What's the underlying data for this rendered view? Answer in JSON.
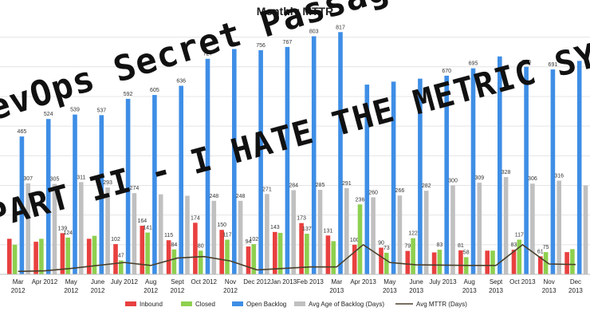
{
  "overlay": {
    "line1": "DevOps Secret Passageway Ahead",
    "line2": "PART II - I HATE THE METRIC SYSTEM"
  },
  "chart_data": {
    "type": "bar",
    "title": "Monthly MTTR",
    "categories": [
      "Mar 2012",
      "Apr 2012",
      "May 2012",
      "June 2012",
      "July 2012",
      "Aug 2012",
      "Sept 2012",
      "Oct 2012",
      "Nov 2012",
      "Dec 2012",
      "Jan 2013",
      "Feb 2013",
      "Mar 2013",
      "Apr 2013",
      "May 2013",
      "June 2013",
      "July 2013",
      "Aug 2013",
      "Sept 2013",
      "Oct 2013",
      "Nov 2013",
      "Dec 2013"
    ],
    "series": [
      {
        "name": "Inbound",
        "color": "#e8403f",
        "values": [
          120,
          110,
          139,
          120,
          102,
          164,
          115,
          174,
          150,
          94,
          143,
          173,
          131,
          100,
          90,
          79,
          74,
          81,
          80,
          83,
          61,
          75
        ]
      },
      {
        "name": "Closed",
        "color": "#8ed04f",
        "values": [
          100,
          120,
          124,
          130,
          47,
          141,
          84,
          80,
          117,
          102,
          140,
          137,
          112,
          236,
          73,
          122,
          83,
          58,
          80,
          117,
          75,
          85
        ]
      },
      {
        "name": "Open Backlog",
        "color": "#3e8ee6",
        "values": [
          465,
          524,
          539,
          537,
          592,
          605,
          636,
          727,
          760,
          756,
          767,
          803,
          817,
          640,
          650,
          660,
          670,
          695,
          735,
          700,
          691,
          720
        ]
      },
      {
        "name": "Avg Age of Backlog (Days)",
        "color": "#c0c0c0",
        "values": [
          307,
          305,
          311,
          293,
          274,
          270,
          265,
          248,
          248,
          271,
          284,
          285,
          291,
          260,
          266,
          282,
          300,
          309,
          328,
          306,
          316,
          300
        ]
      }
    ],
    "line": {
      "name": "Avg MTTR (Days)",
      "color": "#4a3f2a",
      "values": [
        10,
        12,
        20,
        30,
        40,
        30,
        55,
        60,
        45,
        15,
        20,
        25,
        25,
        100,
        40,
        32,
        31,
        30,
        30,
        100,
        35,
        33
      ]
    },
    "ylim": [
      0,
      850
    ],
    "legend_position": "bottom",
    "x_labels": [
      [
        "Mar",
        "2012"
      ],
      [
        "Apr 2012"
      ],
      [
        "May",
        "2012"
      ],
      [
        "June",
        "2012"
      ],
      [
        "July 2012"
      ],
      [
        "Aug",
        "2012"
      ],
      [
        "Sept",
        "2012"
      ],
      [
        "Oct 2012"
      ],
      [
        "Nov",
        "2012"
      ],
      [
        "Dec 2012"
      ],
      [
        "Jan 2013"
      ],
      [
        "Feb 2013"
      ],
      [
        "Mar",
        "2013"
      ],
      [
        "Apr 2013"
      ],
      [
        "May",
        "2013"
      ],
      [
        "June",
        "2013"
      ],
      [
        "July 2013"
      ],
      [
        "Aug",
        "2013"
      ],
      [
        "Sept",
        "2013"
      ],
      [
        "Oct 2013"
      ],
      [
        "Nov",
        "2013"
      ],
      [
        "Dec",
        "2013"
      ]
    ],
    "data_labels": {
      "Inbound": [
        "",
        "",
        "139",
        "",
        "102",
        "164",
        "115",
        "174",
        "150",
        "94",
        "143",
        "173",
        "131",
        "100",
        "90",
        "79",
        "",
        "81",
        "",
        "83",
        "61",
        ""
      ],
      "Closed": [
        "",
        "",
        "124",
        "",
        "47",
        "141",
        "84",
        "80",
        "117",
        "102",
        "",
        "137",
        "",
        "236",
        "73",
        "122",
        "83",
        "58",
        "",
        "117",
        "75",
        ""
      ],
      "Open Backlog": [
        "465",
        "524",
        "539",
        "537",
        "592",
        "605",
        "636",
        "727",
        "760",
        "756",
        "767",
        "803",
        "817",
        "",
        "",
        "",
        "670",
        "695",
        "",
        "700",
        "691",
        ""
      ],
      "Avg Age of Backlog (Days)": [
        "307",
        "305",
        "311",
        "293",
        "274",
        "",
        "",
        "248",
        "248",
        "271",
        "284",
        "285",
        "291",
        "260",
        "266",
        "282",
        "300",
        "309",
        "328",
        "306",
        "316",
        ""
      ]
    }
  }
}
